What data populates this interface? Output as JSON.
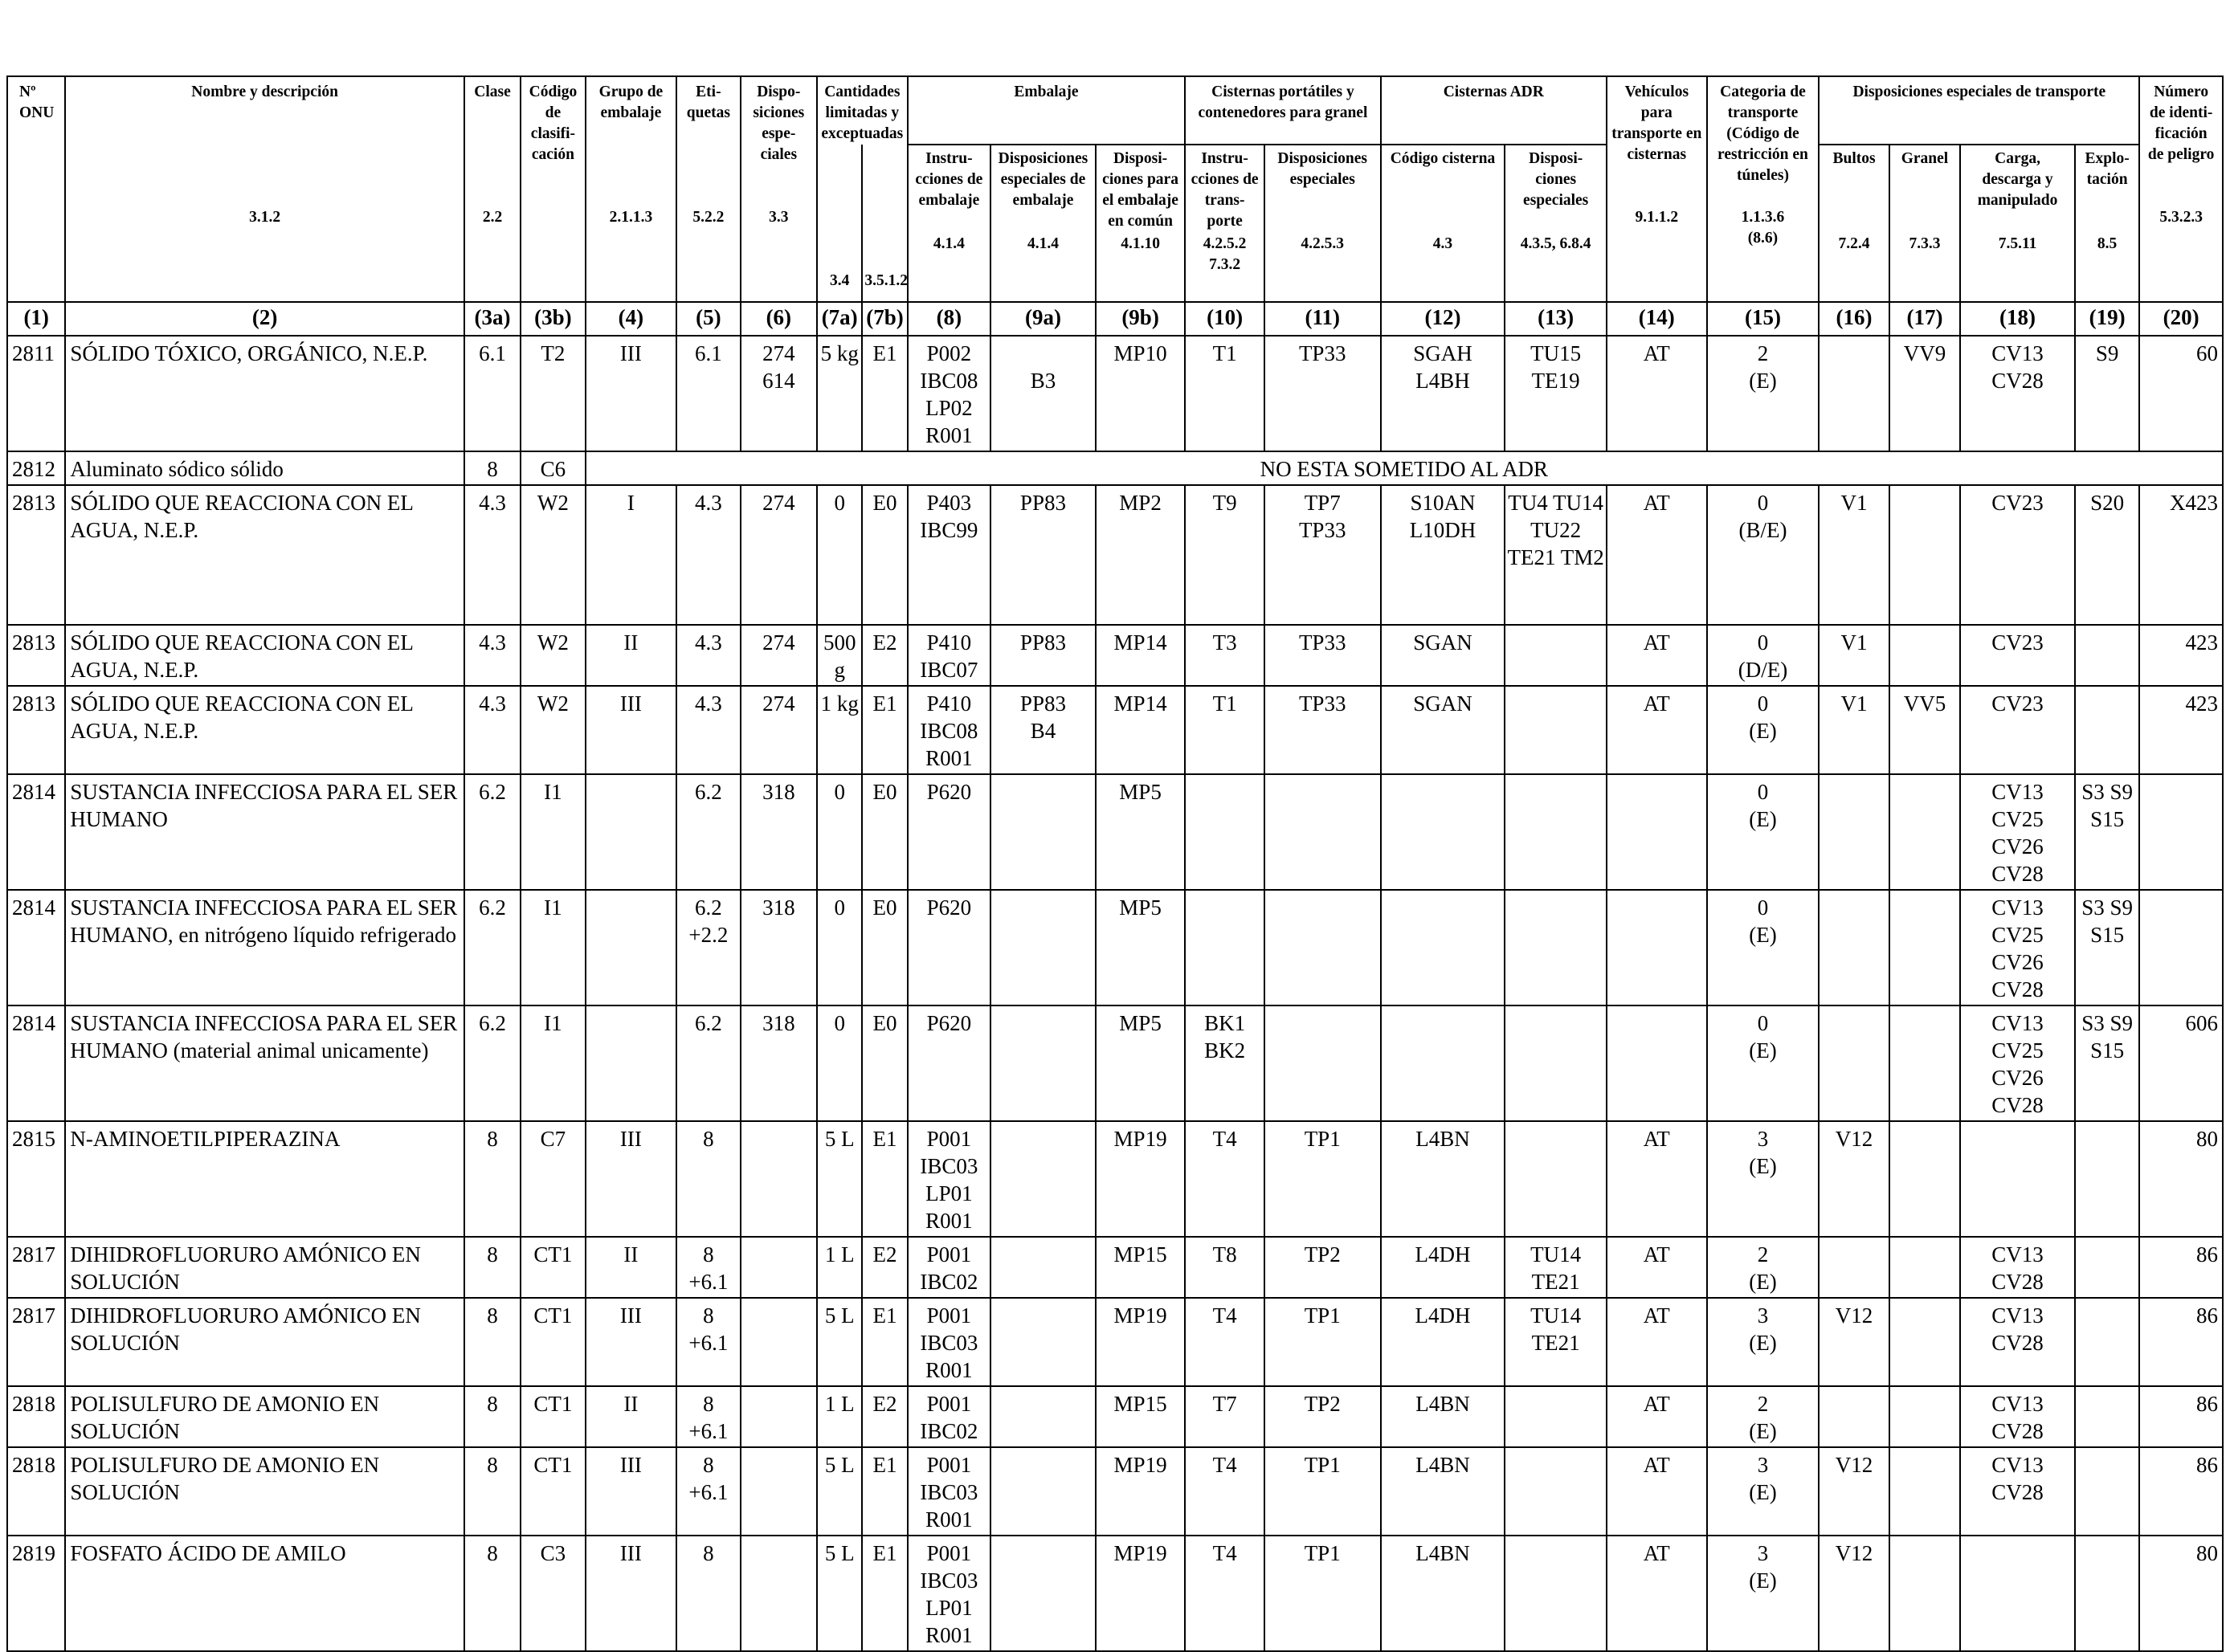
{
  "headers": {
    "onu": "Nº\nONU",
    "name": "Nombre y descripción",
    "clase": "Clase",
    "codigo": "Código\nde clasifi-\ncación",
    "grupo": "Grupo de\nembalaje",
    "etiquetas": "Eti-\nquetas",
    "disposiciones": "Dispo-\nsiciones\nespe-\nciales",
    "cantidades": "Cantidades\nlimitadas y\nexceptuadas",
    "embalaje": "Embalaje",
    "emb_instr": "Instru-\ncciones de\nembalaje",
    "emb_disp": "Disposiciones\nespeciales de\nembalaje",
    "emb_comun": "Disposi-\nciones para\nel embalaje\nen común",
    "cisternas_port": "Cisternas portátiles y\ncontenedores para granel",
    "cp_instr": "Instru-\ncciones de\ntrans-\nporte",
    "cp_disp": "Disposiciones\nespeciales",
    "cisternas_adr": "Cisternas ADR",
    "adr_codigo": "Código cisterna",
    "adr_disp": "Disposi-\nciones\nespeciales",
    "vehiculos": "Vehículos\npara\ntransporte en\ncisternas",
    "categoria": "Categoria de\ntransporte\n(Código de\nrestricción en\ntúneles)",
    "disp_transporte": "Disposiciones especiales de transporte",
    "bultos": "Bultos",
    "granel": "Granel",
    "carga": "Carga,\ndescarga y\nmanipulado",
    "explo": "Explo-\ntación",
    "numero": "Número\nde identi-\nficación\nde peligro"
  },
  "refs": {
    "name": "3.1.2",
    "clase": "2.2",
    "grupo": "2.1.1.3",
    "etiquetas": "5.2.2",
    "disposiciones": "3.3",
    "c7a": "3.4",
    "c7b": "3.5.1.2",
    "c8": "4.1.4",
    "c9a": "4.1.4",
    "c9b": "4.1.10",
    "c10": "4.2.5.2\n7.3.2",
    "c11": "4.2.5.3",
    "c12": "4.3",
    "c13": "4.3.5, 6.8.4",
    "c14": "9.1.1.2",
    "c15": "1.1.3.6\n(8.6)",
    "c16": "7.2.4",
    "c17": "7.3.3",
    "c18": "7.5.11",
    "c19": "8.5",
    "c20": "5.3.2.3"
  },
  "column_numbers": [
    "(1)",
    "(2)",
    "(3a)",
    "(3b)",
    "(4)",
    "(5)",
    "(6)",
    "(7a)",
    "(7b)",
    "(8)",
    "(9a)",
    "(9b)",
    "(10)",
    "(11)",
    "(12)",
    "(13)",
    "(14)",
    "(15)",
    "(16)",
    "(17)",
    "(18)",
    "(19)",
    "(20)"
  ],
  "not_subject_text": "NO ESTA SOMETIDO AL ADR",
  "rows": [
    [
      "2811",
      "SÓLIDO TÓXICO, ORGÁNICO, N.E.P.",
      "6.1",
      "T2",
      "III",
      "6.1",
      "274\n614",
      "5 kg",
      "E1",
      "P002\nIBC08\nLP02\nR001",
      "\nB3",
      "MP10",
      "T1",
      "TP33",
      "SGAH\nL4BH",
      "TU15\nTE19",
      "AT",
      "2\n(E)",
      "",
      "VV9",
      "CV13\nCV28",
      "S9",
      "60"
    ],
    [
      "2812",
      "Aluminato sódico sólido",
      "8",
      "C6"
    ],
    [
      "2813",
      "SÓLIDO QUE REACCIONA CON EL AGUA, N.E.P.",
      "4.3",
      "W2",
      "I",
      "4.3",
      "274",
      "0",
      "E0",
      "P403\nIBC99",
      "PP83",
      "MP2",
      "T9",
      "TP7\nTP33",
      "S10AN\nL10DH",
      "TU4 TU14\nTU22\nTE21 TM2",
      "AT",
      "0\n(B/E)",
      "V1",
      "",
      "CV23",
      "S20",
      "X423"
    ],
    [
      "2813",
      "SÓLIDO QUE REACCIONA CON EL AGUA, N.E.P.",
      "4.3",
      "W2",
      "II",
      "4.3",
      "274",
      "500\ng",
      "E2",
      "P410\nIBC07",
      "PP83",
      "MP14",
      "T3",
      "TP33",
      "SGAN",
      "",
      "AT",
      "0\n(D/E)",
      "V1",
      "",
      "CV23",
      "",
      "423"
    ],
    [
      "2813",
      "SÓLIDO QUE REACCIONA CON EL AGUA, N.E.P.",
      "4.3",
      "W2",
      "III",
      "4.3",
      "274",
      "1 kg",
      "E1",
      "P410\nIBC08\nR001",
      "PP83\nB4",
      "MP14",
      "T1",
      "TP33",
      "SGAN",
      "",
      "AT",
      "0\n(E)",
      "V1",
      "VV5",
      "CV23",
      "",
      "423"
    ],
    [
      "2814",
      "SUSTANCIA INFECCIOSA PARA EL SER HUMANO",
      "6.2",
      "I1",
      "",
      "6.2",
      "318",
      "0",
      "E0",
      "P620",
      "",
      "MP5",
      "",
      "",
      "",
      "",
      "",
      "0\n(E)",
      "",
      "",
      "CV13\nCV25\nCV26\nCV28",
      "S3 S9\nS15",
      ""
    ],
    [
      "2814",
      "SUSTANCIA INFECCIOSA PARA EL SER HUMANO, en nitrógeno líquido refrigerado",
      "6.2",
      "I1",
      "",
      "6.2\n+2.2",
      "318",
      "0",
      "E0",
      "P620",
      "",
      "MP5",
      "",
      "",
      "",
      "",
      "",
      "0\n(E)",
      "",
      "",
      "CV13\nCV25\nCV26\nCV28",
      "S3 S9\nS15",
      ""
    ],
    [
      "2814",
      "SUSTANCIA INFECCIOSA PARA EL SER HUMANO (material animal unicamente)",
      "6.2",
      "I1",
      "",
      "6.2",
      "318",
      "0",
      "E0",
      "P620",
      "",
      "MP5",
      "BK1\nBK2",
      "",
      "",
      "",
      "",
      "0\n(E)",
      "",
      "",
      "CV13\nCV25\nCV26\nCV28",
      "S3 S9\nS15",
      "606"
    ],
    [
      "2815",
      "N-AMINOETILPIPERAZINA",
      "8",
      "C7",
      "III",
      "8",
      "",
      "5 L",
      "E1",
      "P001\nIBC03\nLP01\nR001",
      "",
      "MP19",
      "T4",
      "TP1",
      "L4BN",
      "",
      "AT",
      "3\n(E)",
      "V12",
      "",
      "",
      "",
      "80"
    ],
    [
      "2817",
      "DIHIDROFLUORURO AMÓNICO EN SOLUCIÓN",
      "8",
      "CT1",
      "II",
      "8\n+6.1",
      "",
      "1 L",
      "E2",
      "P001\nIBC02",
      "",
      "MP15",
      "T8",
      "TP2",
      "L4DH",
      "TU14\nTE21",
      "AT",
      "2\n(E)",
      "",
      "",
      "CV13\nCV28",
      "",
      "86"
    ],
    [
      "2817",
      "DIHIDROFLUORURO AMÓNICO EN SOLUCIÓN",
      "8",
      "CT1",
      "III",
      "8\n+6.1",
      "",
      "5 L",
      "E1",
      "P001\nIBC03\nR001",
      "",
      "MP19",
      "T4",
      "TP1",
      "L4DH",
      "TU14\nTE21",
      "AT",
      "3\n(E)",
      "V12",
      "",
      "CV13\nCV28",
      "",
      "86"
    ],
    [
      "2818",
      "POLISULFURO DE AMONIO EN SOLUCIÓN",
      "8",
      "CT1",
      "II",
      "8\n+6.1",
      "",
      "1 L",
      "E2",
      "P001\nIBC02",
      "",
      "MP15",
      "T7",
      "TP2",
      "L4BN",
      "",
      "AT",
      "2\n(E)",
      "",
      "",
      "CV13\nCV28",
      "",
      "86"
    ],
    [
      "2818",
      "POLISULFURO DE AMONIO EN SOLUCIÓN",
      "8",
      "CT1",
      "III",
      "8\n+6.1",
      "",
      "5 L",
      "E1",
      "P001\nIBC03\nR001",
      "",
      "MP19",
      "T4",
      "TP1",
      "L4BN",
      "",
      "AT",
      "3\n(E)",
      "V12",
      "",
      "CV13\nCV28",
      "",
      "86"
    ],
    [
      "2819",
      "FOSFATO ÁCIDO DE AMILO",
      "8",
      "C3",
      "III",
      "8",
      "",
      "5 L",
      "E1",
      "P001\nIBC03\nLP01\nR001",
      "",
      "MP19",
      "T4",
      "TP1",
      "L4BN",
      "",
      "AT",
      "3\n(E)",
      "V12",
      "",
      "",
      "",
      "80"
    ]
  ]
}
